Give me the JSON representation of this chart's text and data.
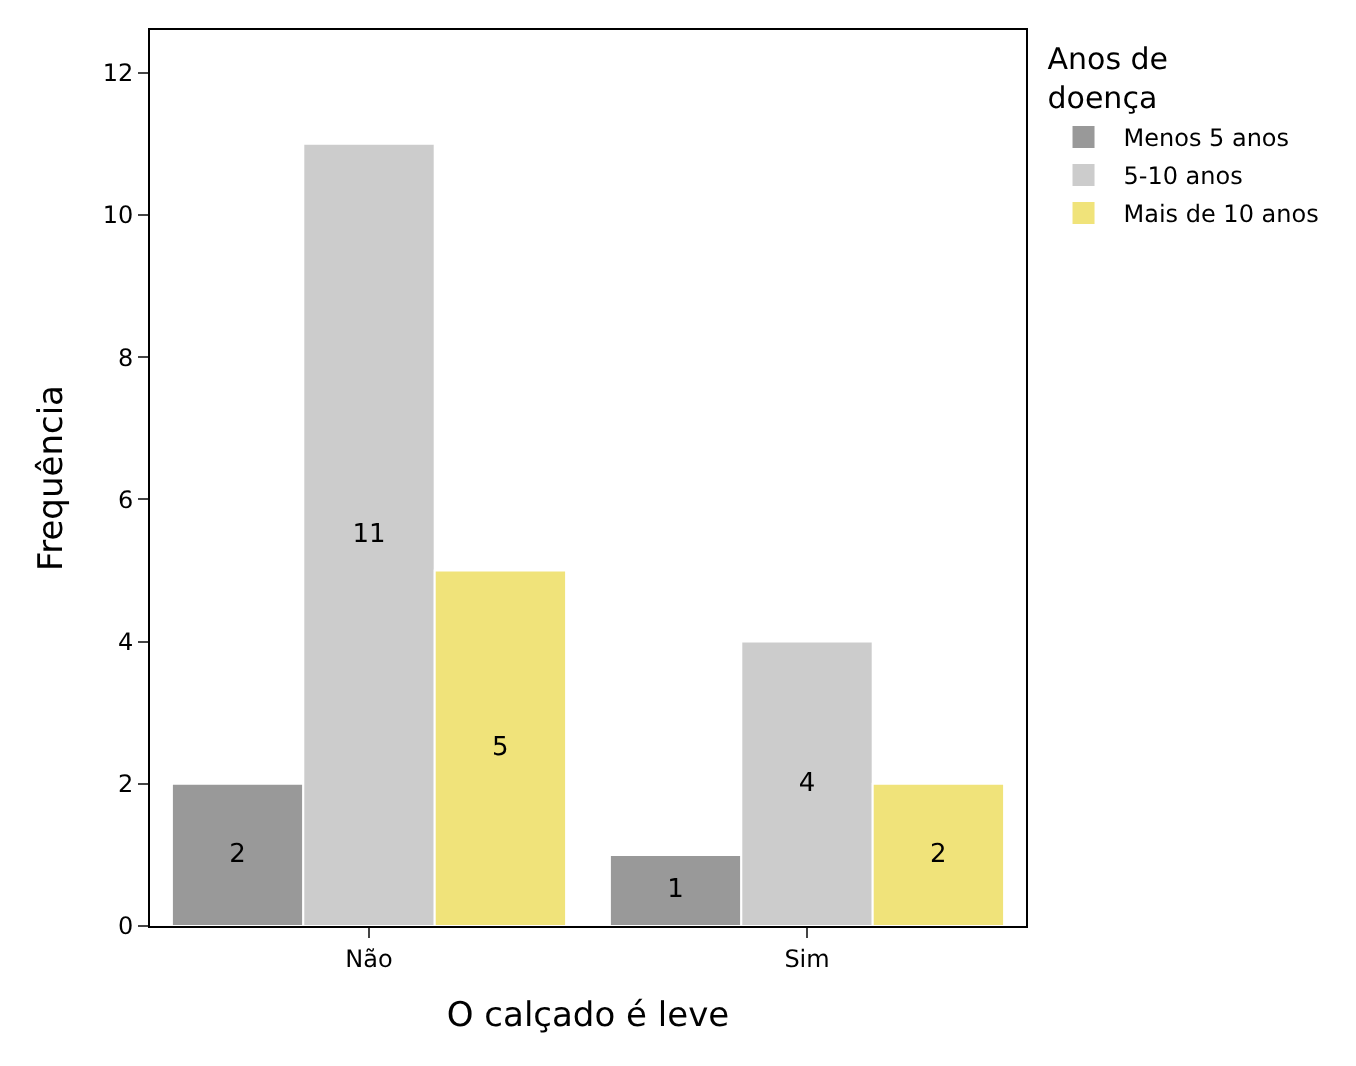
{
  "chart_data": {
    "type": "bar",
    "xlabel": "O calçado é leve",
    "ylabel": "Frequência",
    "legend_title": "Anos de doença",
    "categories": [
      "Não",
      "Sim"
    ],
    "series": [
      {
        "name": "Menos 5 anos",
        "color": "#999999",
        "values": [
          2,
          1
        ]
      },
      {
        "name": "5-10 anos",
        "color": "#cccccc",
        "values": [
          11,
          4
        ]
      },
      {
        "name": "Mais de 10 anos",
        "color": "#f0e37a",
        "values": [
          5,
          2
        ]
      }
    ],
    "ylim": [
      0,
      12.6
    ],
    "yticks": [
      0,
      2,
      4,
      6,
      8,
      10,
      12
    ],
    "legend": "top right",
    "data_labels": true
  }
}
